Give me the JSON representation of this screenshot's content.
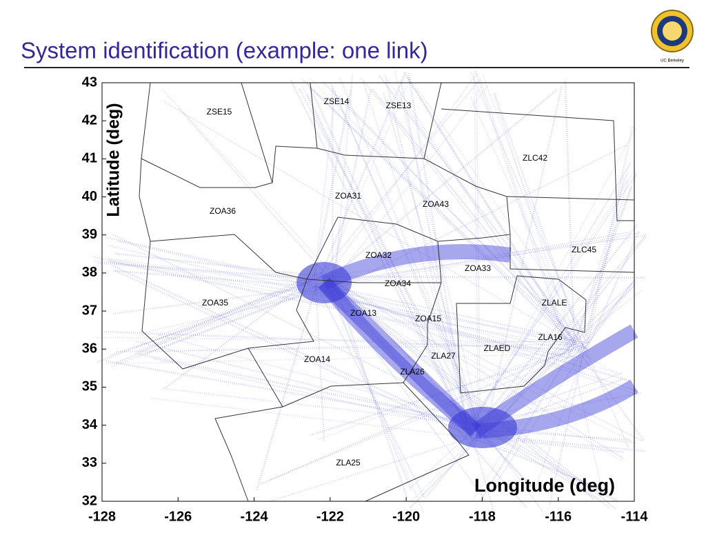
{
  "title": "System identification (example: one link)",
  "logo": "UC Berkeley",
  "chart_data": {
    "type": "scatter",
    "xlabel": "Longitude (deg)",
    "ylabel": "Latitude (deg)",
    "xlim": [
      -128,
      -114
    ],
    "xticks": [
      -128,
      -126,
      -124,
      -122,
      -120,
      -118,
      -116,
      -114
    ],
    "ylim": [
      32,
      43
    ],
    "yticks": [
      32,
      33,
      34,
      35,
      36,
      37,
      38,
      39,
      40,
      41,
      42,
      43
    ],
    "color": "#3b3bd6",
    "annotations": [
      "ZSE15",
      "ZSE14",
      "ZSE13",
      "ZLC42",
      "ZOA31",
      "ZOA43",
      "ZOA36",
      "ZLC45",
      "ZOA32",
      "ZOA33",
      "ZOA34",
      "ZLALE",
      "ZOA35",
      "ZOA13",
      "ZOA15",
      "ZLA16",
      "ZLAED",
      "ZLA27",
      "ZOA14",
      "ZLA26",
      "ZLA25"
    ]
  }
}
